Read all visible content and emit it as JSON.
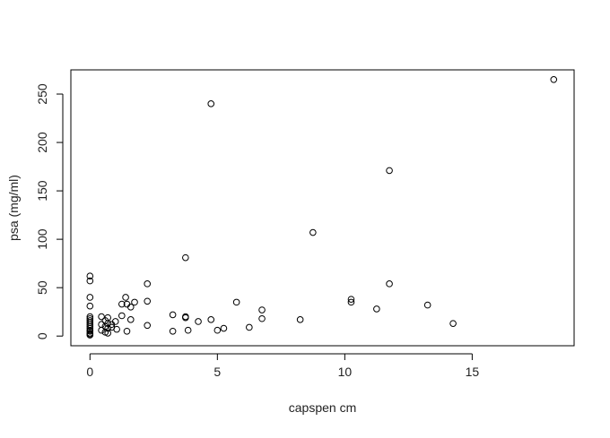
{
  "chart_data": {
    "type": "scatter",
    "title": "",
    "xlabel": "capspen cm",
    "ylabel": "psa (mg/ml)",
    "xlim": [
      -0.75,
      19.0
    ],
    "ylim": [
      -10,
      275
    ],
    "x_ticks": [
      0,
      5,
      10,
      15
    ],
    "y_ticks": [
      0,
      50,
      100,
      150,
      200,
      250
    ],
    "grid": false,
    "marker": "open-circle",
    "series": [
      {
        "points": [
          [
            0,
            62
          ],
          [
            0,
            57
          ],
          [
            0,
            40
          ],
          [
            0,
            31
          ],
          [
            0,
            20
          ],
          [
            0,
            18
          ],
          [
            0,
            16
          ],
          [
            0,
            14
          ],
          [
            0,
            12
          ],
          [
            0,
            10
          ],
          [
            0,
            8
          ],
          [
            0,
            6
          ],
          [
            0,
            5
          ],
          [
            0,
            3
          ],
          [
            0,
            2
          ],
          [
            0,
            1
          ],
          [
            0.45,
            20
          ],
          [
            0.45,
            12
          ],
          [
            0.45,
            6
          ],
          [
            0.6,
            16
          ],
          [
            0.6,
            10
          ],
          [
            0.6,
            4
          ],
          [
            0.7,
            19
          ],
          [
            0.7,
            13
          ],
          [
            0.7,
            8
          ],
          [
            0.7,
            3
          ],
          [
            0.85,
            12
          ],
          [
            0.85,
            9
          ],
          [
            1.0,
            15
          ],
          [
            1.05,
            7
          ],
          [
            1.25,
            33
          ],
          [
            1.25,
            21
          ],
          [
            1.4,
            40
          ],
          [
            1.45,
            33
          ],
          [
            1.45,
            5
          ],
          [
            1.6,
            30
          ],
          [
            1.6,
            17
          ],
          [
            1.75,
            35
          ],
          [
            2.25,
            54
          ],
          [
            2.25,
            36
          ],
          [
            2.25,
            11
          ],
          [
            3.25,
            22
          ],
          [
            3.25,
            5
          ],
          [
            3.75,
            81
          ],
          [
            3.75,
            20
          ],
          [
            3.75,
            19
          ],
          [
            3.85,
            6
          ],
          [
            4.25,
            15
          ],
          [
            4.75,
            240
          ],
          [
            4.75,
            17
          ],
          [
            5.0,
            6
          ],
          [
            5.25,
            8
          ],
          [
            5.75,
            35
          ],
          [
            6.25,
            9
          ],
          [
            6.75,
            27
          ],
          [
            6.75,
            18
          ],
          [
            8.25,
            17
          ],
          [
            8.75,
            107
          ],
          [
            10.25,
            38
          ],
          [
            10.25,
            35
          ],
          [
            11.25,
            28
          ],
          [
            11.75,
            171
          ],
          [
            11.75,
            54
          ],
          [
            13.25,
            32
          ],
          [
            14.25,
            13
          ],
          [
            18.2,
            265
          ]
        ]
      }
    ]
  }
}
